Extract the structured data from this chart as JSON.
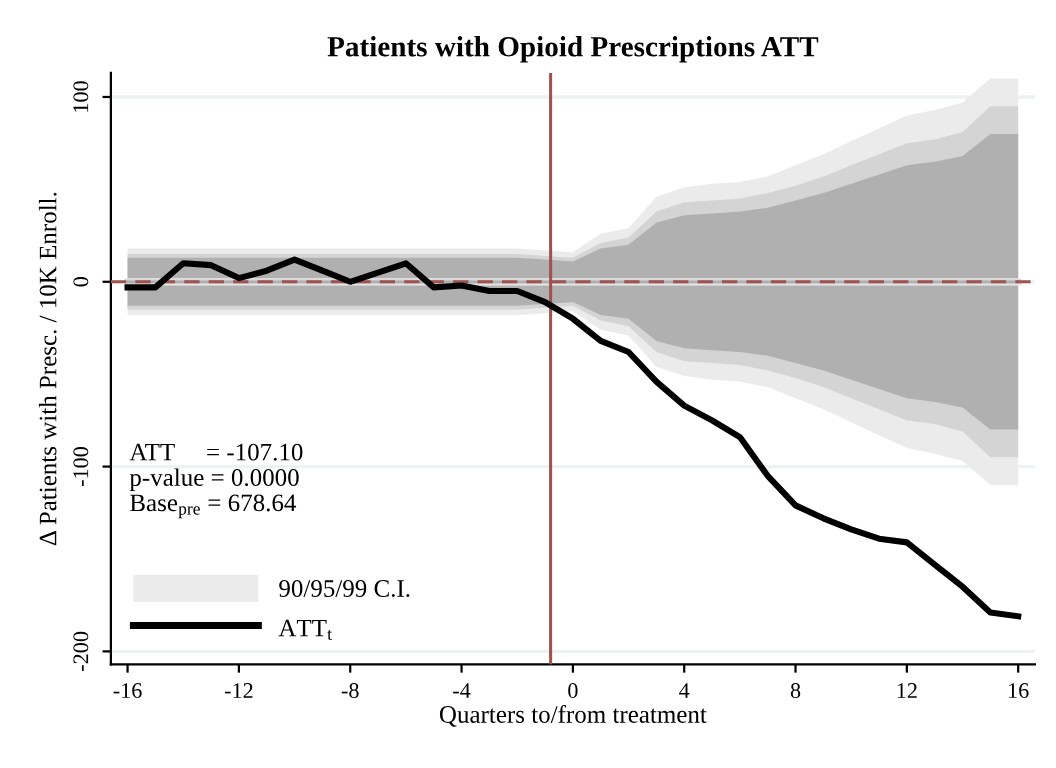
{
  "chart_data": {
    "type": "line",
    "title": "Patients with Opioid Prescriptions ATT",
    "xlabel": "Quarters to/from treatment",
    "ylabel": "Δ Patients with Presc. / 10K Enroll.",
    "x": [
      -16,
      -15,
      -14,
      -13,
      -12,
      -11,
      -10,
      -9,
      -8,
      -7,
      -6,
      -5,
      -4,
      -3,
      -2,
      -1,
      0,
      1,
      2,
      3,
      4,
      5,
      6,
      7,
      8,
      9,
      10,
      11,
      12,
      13,
      14,
      15,
      16
    ],
    "series": [
      {
        "name": "90/95/99 C.I.",
        "color": "#ebebeb",
        "values": [
          0,
          0,
          0,
          0,
          0,
          0,
          0,
          0,
          0,
          0,
          0,
          0,
          0,
          0,
          0,
          0,
          0,
          0,
          0,
          0,
          0,
          0,
          0,
          0,
          0,
          0,
          0,
          0,
          0,
          0,
          0,
          0,
          0
        ],
        "lower": [
          -18,
          -18,
          -18,
          -18,
          -18,
          -18,
          -18,
          -18,
          -18,
          -18,
          -18,
          -18,
          -18,
          -18,
          -18,
          -17,
          -16,
          -26,
          -29,
          -46,
          -51,
          -53,
          -54,
          -57,
          -63,
          -69,
          -76,
          -83,
          -90,
          -93,
          -97,
          -110,
          -110
        ],
        "upper": [
          18,
          18,
          18,
          18,
          18,
          18,
          18,
          18,
          18,
          18,
          18,
          18,
          18,
          18,
          18,
          17,
          16,
          26,
          29,
          46,
          51,
          53,
          54,
          57,
          63,
          69,
          76,
          83,
          90,
          93,
          97,
          110,
          110
        ]
      },
      {
        "color": "#d4d4d4",
        "values": [
          0,
          0,
          0,
          0,
          0,
          0,
          0,
          0,
          0,
          0,
          0,
          0,
          0,
          0,
          0,
          0,
          0,
          0,
          0,
          0,
          0,
          0,
          0,
          0,
          0,
          0,
          0,
          0,
          0,
          0,
          0,
          0,
          0
        ],
        "lower": [
          -15,
          -15,
          -15,
          -15,
          -15,
          -15,
          -15,
          -15,
          -15,
          -15,
          -15,
          -15,
          -15,
          -15,
          -15,
          -14,
          -13,
          -21,
          -24,
          -38,
          -43,
          -44,
          -45,
          -48,
          -52,
          -57,
          -63,
          -69,
          -75,
          -77,
          -81,
          -95,
          -95
        ],
        "upper": [
          15,
          15,
          15,
          15,
          15,
          15,
          15,
          15,
          15,
          15,
          15,
          15,
          15,
          15,
          15,
          14,
          13,
          21,
          24,
          38,
          43,
          44,
          45,
          48,
          52,
          57,
          63,
          69,
          75,
          77,
          81,
          95,
          95
        ]
      },
      {
        "color": "#b0b0b0",
        "values": [
          0,
          0,
          0,
          0,
          0,
          0,
          0,
          0,
          0,
          0,
          0,
          0,
          0,
          0,
          0,
          0,
          0,
          0,
          0,
          0,
          0,
          0,
          0,
          0,
          0,
          0,
          0,
          0,
          0,
          0,
          0,
          0,
          0
        ],
        "lower": [
          -13,
          -13,
          -13,
          -13,
          -13,
          -13,
          -13,
          -13,
          -13,
          -13,
          -13,
          -13,
          -13,
          -13,
          -13,
          -12,
          -11,
          -18,
          -20,
          -32,
          -36,
          -37,
          -38,
          -40,
          -44,
          -48,
          -53,
          -58,
          -63,
          -65,
          -68,
          -80,
          -80
        ],
        "upper": [
          13,
          13,
          13,
          13,
          13,
          13,
          13,
          13,
          13,
          13,
          13,
          13,
          13,
          13,
          13,
          12,
          11,
          18,
          20,
          32,
          36,
          37,
          38,
          40,
          44,
          48,
          53,
          58,
          63,
          65,
          68,
          80,
          80
        ]
      },
      {
        "name": "ATT$_{t}$",
        "color": "#000000",
        "values": [
          -3,
          -3,
          10,
          9,
          2,
          6,
          12,
          6,
          0,
          5,
          10,
          -3,
          -2,
          -5,
          -5,
          -11,
          -20,
          -32,
          -38,
          -54,
          -67,
          -75,
          -84,
          -105,
          -121,
          -128,
          -134,
          -139,
          -141,
          -153,
          -165,
          -179,
          -181
        ]
      }
    ],
    "xlim": [
      -16.6,
      16.6
    ],
    "ylim": [
      -207,
      113
    ],
    "xticks": [
      -16,
      -12,
      -8,
      -4,
      0,
      4,
      8,
      12,
      16
    ],
    "yticks": [
      -200,
      -100,
      0,
      100
    ],
    "ref_lines": [
      {
        "axis": "y",
        "value": 0,
        "color": "#a0524f",
        "line_style": "dashed"
      },
      {
        "axis": "x",
        "value": -0.8,
        "color": "#a0524f",
        "line_style": "solid"
      }
    ],
    "annotations": [
      "ATT     = -107.10",
      "p-value = 0.0000",
      "Base$_{pre}$ = 678.64"
    ],
    "grid": "y",
    "legend": "bottom left"
  }
}
